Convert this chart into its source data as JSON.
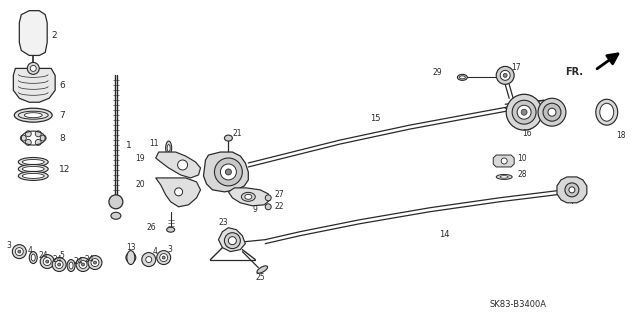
{
  "bg_color": "#ffffff",
  "line_color": "#2a2a2a",
  "diagram_code": "SK83-B3400A",
  "fr_label": "FR.",
  "figsize": [
    6.4,
    3.19
  ],
  "dpi": 100,
  "ylim": [
    0,
    319
  ],
  "xlim": [
    0,
    640
  ]
}
